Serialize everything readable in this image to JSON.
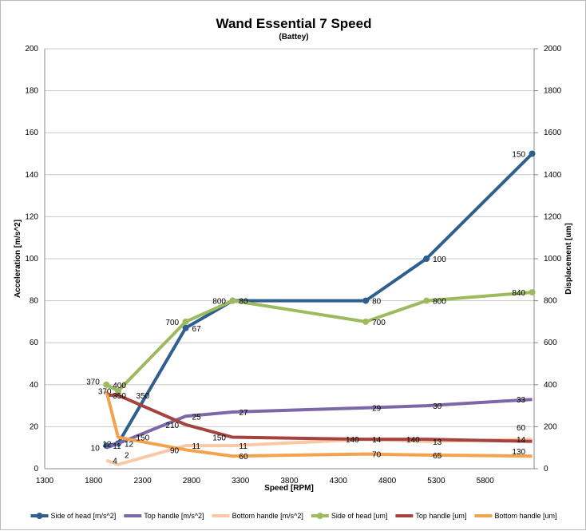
{
  "chart_data": {
    "type": "line",
    "title": "Wand Essential 7 Speed",
    "subtitle": "(Battey)",
    "xlabel": "Speed [RPM]",
    "ylabel": "Acceleration [m/s^2]",
    "y2label": "Displacement [um]",
    "xlim": [
      1300,
      6300
    ],
    "ylim": [
      0,
      200
    ],
    "y2lim": [
      0,
      2000
    ],
    "xticks": [
      1300,
      1800,
      2300,
      2800,
      3300,
      3800,
      4300,
      4800,
      5300,
      5800
    ],
    "yticks": [
      0,
      20,
      40,
      60,
      80,
      100,
      120,
      140,
      160,
      180,
      200
    ],
    "y2ticks": [
      0,
      200,
      400,
      600,
      800,
      1000,
      1200,
      1400,
      1600,
      1800,
      2000
    ],
    "grid": true,
    "legend": "bottom",
    "x": [
      1930,
      2050,
      2740,
      3220,
      4580,
      5200,
      6280
    ],
    "series": [
      {
        "name": "Side of head [m/s^2]",
        "axis": "left",
        "color": "#2e5f8f",
        "marker": true,
        "values": [
          11,
          12,
          67,
          80,
          80,
          100,
          150
        ]
      },
      {
        "name": "Top handle [m/s^2]",
        "axis": "left",
        "color": "#7c68a8",
        "marker": false,
        "values": [
          10,
          12,
          25,
          27,
          29,
          30,
          33
        ]
      },
      {
        "name": "Bottom handle [m/s^2]",
        "axis": "left",
        "color": "#f8c9a4",
        "marker": false,
        "values": [
          4,
          2,
          11,
          11,
          14,
          13,
          14
        ]
      },
      {
        "name": "Side of head [um]",
        "axis": "right",
        "color": "#9dbb5e",
        "marker": true,
        "values": [
          400,
          370,
          700,
          800,
          700,
          800,
          840
        ]
      },
      {
        "name": "Top handle [um]",
        "axis": "right",
        "color": "#a5433f",
        "marker": false,
        "values": [
          350,
          350,
          210,
          150,
          140,
          140,
          130
        ]
      },
      {
        "name": "Bottom handle [um]",
        "axis": "right",
        "color": "#f5a24f",
        "marker": false,
        "values": [
          370,
          150,
          90,
          60,
          70,
          65,
          60
        ]
      }
    ]
  }
}
